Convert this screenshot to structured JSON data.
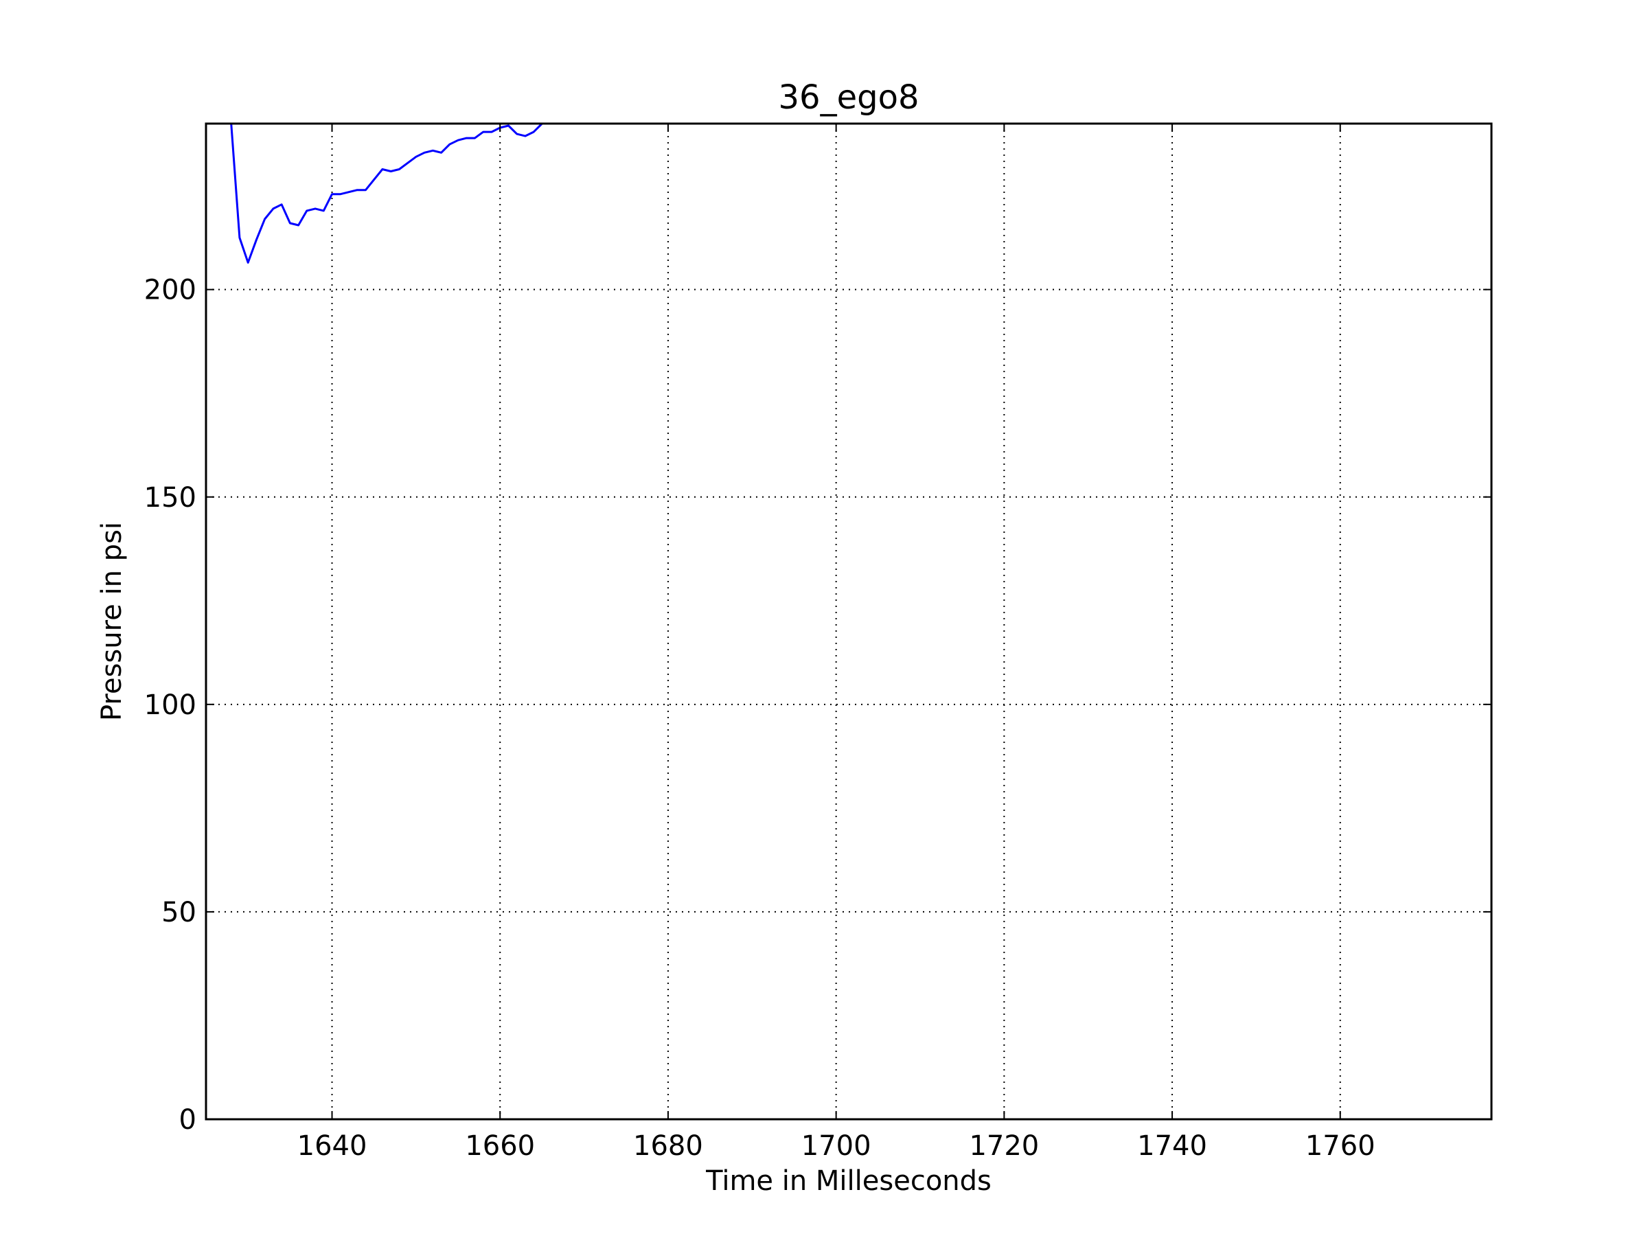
{
  "chart_data": {
    "type": "line",
    "title": "36_ego8",
    "xlabel": "Time in Milleseconds",
    "ylabel": "Pressure in psi",
    "xlim": [
      1625,
      1778
    ],
    "ylim": [
      0,
      240
    ],
    "xticks": [
      1640,
      1660,
      1680,
      1700,
      1720,
      1740,
      1760
    ],
    "yticks": [
      0,
      50,
      100,
      150,
      200
    ],
    "grid": true,
    "line_color": "#0000ff",
    "series": [
      {
        "x": [
          1628,
          1629,
          1630,
          1631,
          1632,
          1633,
          1634,
          1635,
          1636,
          1637,
          1638,
          1639,
          1640,
          1641,
          1642,
          1643,
          1644,
          1645,
          1646,
          1647,
          1648,
          1649,
          1650,
          1651,
          1652,
          1653,
          1654,
          1655,
          1656,
          1657,
          1658,
          1659,
          1660,
          1661,
          1662,
          1663,
          1664,
          1665
        ],
        "y": [
          240,
          212.5,
          206.5,
          212,
          217,
          219.5,
          220.5,
          216,
          215.5,
          219,
          219.5,
          219,
          223,
          223,
          223.5,
          224,
          224,
          226.5,
          229,
          228.5,
          229,
          230.5,
          232,
          233,
          233.5,
          233,
          235,
          236,
          236.5,
          236.5,
          238,
          238,
          239,
          239.5,
          237.5,
          237,
          238,
          240
        ]
      }
    ]
  }
}
